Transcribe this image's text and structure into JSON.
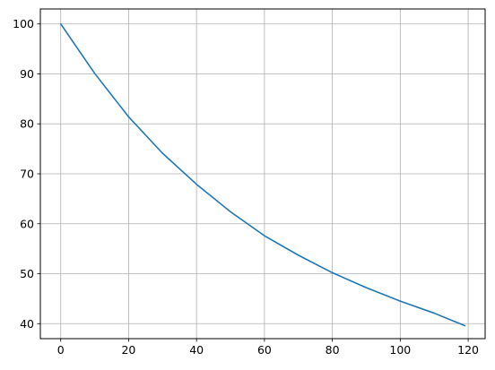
{
  "chart_data": {
    "type": "line",
    "title": "",
    "xlabel": "",
    "ylabel": "",
    "xlim": [
      -6,
      125
    ],
    "ylim": [
      37,
      103
    ],
    "grid": true,
    "x_ticks": [
      0,
      20,
      40,
      60,
      80,
      100,
      120
    ],
    "y_ticks": [
      40,
      50,
      60,
      70,
      80,
      90,
      100
    ],
    "series": [
      {
        "color": "#1f77b4",
        "x": [
          0,
          10,
          20,
          30,
          40,
          50,
          60,
          70,
          80,
          90,
          100,
          110,
          119
        ],
        "y": [
          100,
          90.1,
          81.4,
          74.1,
          67.9,
          62.4,
          57.6,
          53.7,
          50.2,
          47.2,
          44.5,
          42.1,
          39.6
        ]
      }
    ]
  }
}
